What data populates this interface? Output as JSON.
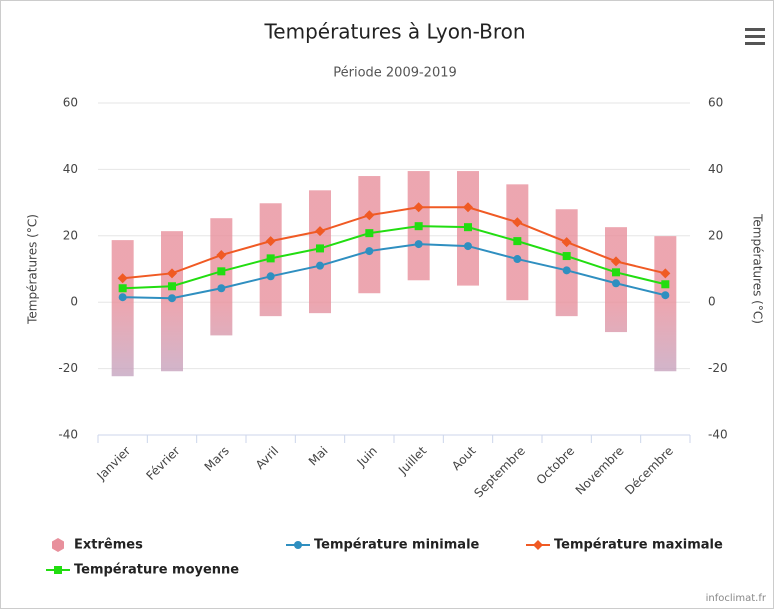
{
  "chart_data": {
    "type": "combo",
    "title": "Températures à Lyon-Bron",
    "subtitle": "Période 2009-2019",
    "yaxis_title": "Températures (°C)",
    "y2axis_title": "Températures (°C)",
    "credits": "infoclimat.fr",
    "categories": [
      "Janvier",
      "Février",
      "Mars",
      "Avril",
      "Mai",
      "Juin",
      "Juillet",
      "Aout",
      "Septembre",
      "Octobre",
      "Novembre",
      "Décembre"
    ],
    "ylim": [
      -40,
      60
    ],
    "yticks": [
      -40,
      -20,
      0,
      20,
      40,
      60
    ],
    "y2lim": [
      -40,
      60
    ],
    "y2ticks": [
      -40,
      -20,
      0,
      20,
      40,
      60
    ],
    "grid": true,
    "series": [
      {
        "name": "Extrêmes",
        "type": "range",
        "color": "#e8909c",
        "color_low": "#a8b4dc",
        "low": [
          -22.3,
          -20.8,
          -10,
          -4.2,
          -3.3,
          2.7,
          6.6,
          5,
          0.6,
          -4.2,
          -9,
          -20.8
        ],
        "high": [
          18.7,
          21.4,
          25.3,
          29.8,
          33.7,
          38,
          39.5,
          39.5,
          35.5,
          28,
          22.6,
          19.9
        ]
      },
      {
        "name": "Température minimale",
        "type": "line",
        "marker": "circle",
        "color": "#2f8fc0",
        "values": [
          1.5,
          1.2,
          4.2,
          7.8,
          11,
          15.4,
          17.5,
          16.9,
          13,
          9.6,
          5.7,
          2.1
        ]
      },
      {
        "name": "Température maximale",
        "type": "line",
        "marker": "diamond",
        "color": "#f05a24",
        "values": [
          7.2,
          8.7,
          14.2,
          18.4,
          21.4,
          26.2,
          28.6,
          28.6,
          24.1,
          18.1,
          12.3,
          8.7
        ]
      },
      {
        "name": "Température moyenne",
        "type": "line",
        "marker": "square",
        "color": "#22dd11",
        "values": [
          4.2,
          4.8,
          9.3,
          13.2,
          16.2,
          20.8,
          22.9,
          22.6,
          18.4,
          13.9,
          9,
          5.4
        ]
      }
    ]
  }
}
